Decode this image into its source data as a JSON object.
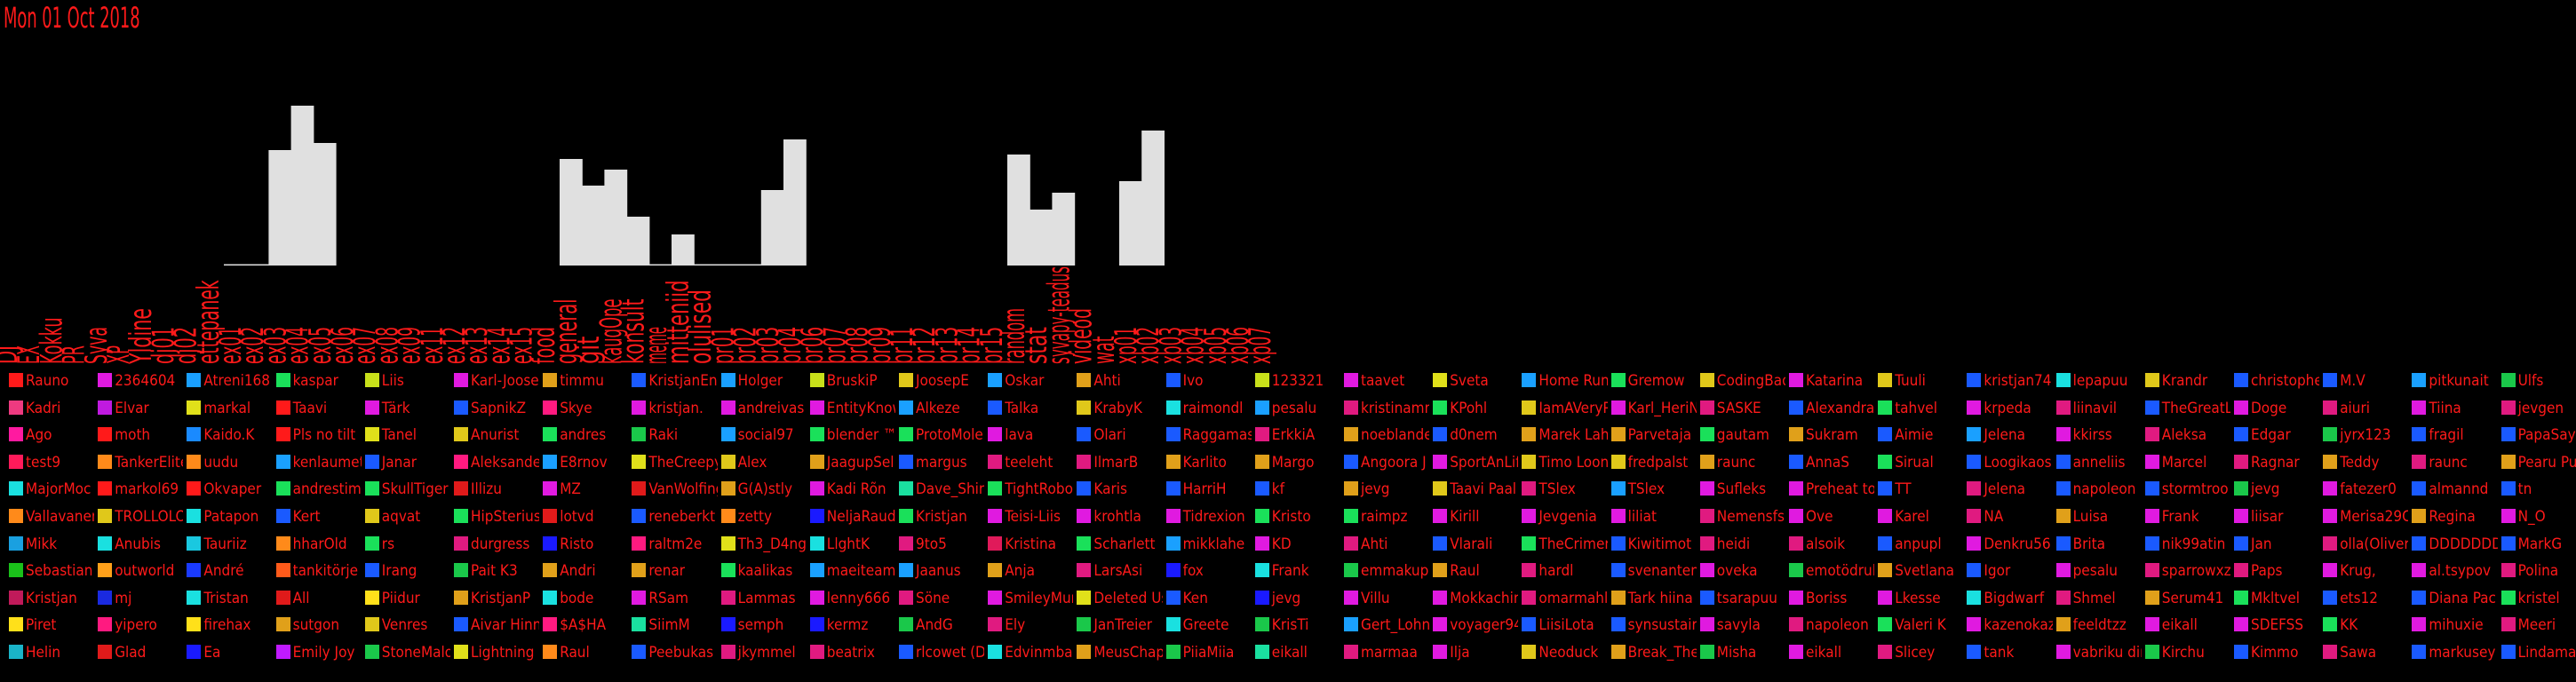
{
  "header": {
    "date": "Mon 01 Oct 2018"
  },
  "chart_data": {
    "type": "bar",
    "categories": [
      "DJ",
      "EX",
      "Kokku",
      "PR",
      "Syva",
      "XP",
      "Yldine",
      "dj01",
      "dj02",
      "ettepanek",
      "ex01",
      "ex02",
      "ex03",
      "ex04",
      "ex05",
      "ex06",
      "ex07",
      "ex08",
      "ex09",
      "ex11",
      "ex12",
      "ex13",
      "ex14",
      "ex15",
      "food",
      "general",
      "git",
      "kaugOpe",
      "konsult",
      "meme",
      "mitteniid",
      "olulised",
      "pr01",
      "pr02",
      "pr03",
      "pr04",
      "pr06",
      "pr07",
      "pr08",
      "pr09",
      "pr11",
      "pr12",
      "pr13",
      "pr14",
      "pr15",
      "random",
      "stat",
      "syvapy-teadus",
      "videod",
      "wat",
      "xp01",
      "xp02",
      "xp03",
      "xp04",
      "xp05",
      "xp06",
      "xp07"
    ],
    "values": [
      0,
      0,
      0,
      0,
      0,
      0,
      0,
      0,
      0,
      0,
      1,
      1,
      130,
      180,
      138,
      0,
      0,
      0,
      0,
      0,
      0,
      0,
      0,
      0,
      0,
      120,
      90,
      108,
      55,
      1,
      35,
      1,
      1,
      1,
      85,
      142,
      0,
      0,
      0,
      0,
      0,
      0,
      0,
      0,
      0,
      125,
      63,
      82,
      0,
      0,
      95,
      152,
      0,
      0,
      0,
      0,
      0
    ],
    "title": "",
    "xlabel": "",
    "ylabel": "",
    "ylim": [
      0,
      180
    ],
    "bar_color": "#e0e0e0",
    "label_color": "#ff1a1a",
    "grid": false
  },
  "columns": [
    [
      [
        "Rauno",
        "#ff1a1a"
      ],
      [
        "Kadri",
        "#ee3a80"
      ],
      [
        "Ago",
        "#ff1aa0"
      ],
      [
        "test9",
        "#ff1a5a"
      ],
      [
        "MajorMoc",
        "#1ae0e0"
      ],
      [
        "Vallavanem",
        "#ff8a1a"
      ],
      [
        "Mikk",
        "#1aa0e0"
      ],
      [
        "Sebastian",
        "#1ac01a"
      ],
      [
        "Kristjan",
        "#c01a5a"
      ],
      [
        "Piret",
        "#ffe01a"
      ],
      [
        "Helin",
        "#1ab4c8"
      ]
    ],
    [
      [
        "2364604",
        "#e01ae0"
      ],
      [
        "Elvar",
        "#c01ae0"
      ],
      [
        "moth",
        "#ff1a1a"
      ],
      [
        "TankerElite",
        "#ff8a1a"
      ],
      [
        "markol69",
        "#ff1a1a"
      ],
      [
        "TROLLOLOL",
        "#e0c81a"
      ],
      [
        "Anubis",
        "#1ae0e0"
      ],
      [
        "outworld",
        "#ffa01a"
      ],
      [
        "mj",
        "#1a2ae0"
      ],
      [
        "yipero",
        "#ff1a80"
      ],
      [
        "Glad",
        "#e01a1a"
      ]
    ],
    [
      [
        "Atreni168",
        "#1aa0ff"
      ],
      [
        "markal",
        "#e0e01a"
      ],
      [
        "Kaido.K",
        "#1a8aff"
      ],
      [
        "uudu",
        "#ff8a1a"
      ],
      [
        "Okvaper",
        "#ff1a1a"
      ],
      [
        "Patapon",
        "#1ae0e0"
      ],
      [
        "Tauriiz",
        "#1ac8e0"
      ],
      [
        "André",
        "#1a3aff"
      ],
      [
        "Tristan",
        "#1ae0e0"
      ],
      [
        "firehax",
        "#ffe01a"
      ],
      [
        "Ea",
        "#1a1aff"
      ]
    ],
    [
      [
        "kaspar",
        "#1ae05a"
      ],
      [
        "Taavi",
        "#ff1a1a"
      ],
      [
        "Pls no tilt",
        "#ff1a1a"
      ],
      [
        "kenlaumett",
        "#1aa0ff"
      ],
      [
        "andrestim",
        "#1ae05a"
      ],
      [
        "Kert",
        "#1a5aff"
      ],
      [
        "hharOld",
        "#ff8a1a"
      ],
      [
        "tankitörje",
        "#ff5a1a"
      ],
      [
        "All",
        "#e01a1a"
      ],
      [
        "sutgon",
        "#e0a01a"
      ],
      [
        "Emily Joy",
        "#c01aff"
      ]
    ],
    [
      [
        "Liis",
        "#c8e01a"
      ],
      [
        "Tärk",
        "#e01ae0"
      ],
      [
        "Tanel",
        "#e0e01a"
      ],
      [
        "Janar",
        "#1a5aff"
      ],
      [
        "SkullTiger",
        "#1ae05a"
      ],
      [
        "aqvat",
        "#e0c81a"
      ],
      [
        "rs",
        "#1ae05a"
      ],
      [
        "Irang",
        "#1a5aff"
      ],
      [
        "Piidur",
        "#ffe01a"
      ],
      [
        "Venres",
        "#e0c81a"
      ],
      [
        "StoneMalo",
        "#1ac84a"
      ]
    ],
    [
      [
        "Karl-Joosep",
        "#e01ae0"
      ],
      [
        "SapnikZ",
        "#1a5aff"
      ],
      [
        "Anurist",
        "#e0c81a"
      ],
      [
        "Aleksander",
        "#ff1a80"
      ],
      [
        "Illizu",
        "#e01a1a"
      ],
      [
        "HipSterius",
        "#1ae05a"
      ],
      [
        "durgress",
        "#e01a80"
      ],
      [
        "Pait K3",
        "#1ac84a"
      ],
      [
        "KristjanP",
        "#e0a01a"
      ],
      [
        "Aivar Hinn",
        "#1a5aff"
      ],
      [
        "Lightning",
        "#e0e01a"
      ]
    ],
    [
      [
        "timmu",
        "#e0a01a"
      ],
      [
        "Skye",
        "#ff1a80"
      ],
      [
        "andres",
        "#1ae05a"
      ],
      [
        "E8rnov",
        "#1aa0ff"
      ],
      [
        "MZ",
        "#e01ae0"
      ],
      [
        "lotvd",
        "#e01a1a"
      ],
      [
        "Risto",
        "#1a1aff"
      ],
      [
        "Andri",
        "#e0a01a"
      ],
      [
        "bode",
        "#1ae0e0"
      ],
      [
        "$A$HA",
        "#ff1a80"
      ],
      [
        "Raul",
        "#ff8a1a"
      ]
    ],
    [
      [
        "KristjanEn",
        "#1a5aff"
      ],
      [
        "kristjan.",
        "#e01ae0"
      ],
      [
        "Raki",
        "#1ac84a"
      ],
      [
        "TheCreepy",
        "#e0e01a"
      ],
      [
        "VanWolfing",
        "#e01a1a"
      ],
      [
        "reneberkt",
        "#1a5aff"
      ],
      [
        "raltm2e",
        "#ff1a80"
      ],
      [
        "renar",
        "#e0a01a"
      ],
      [
        "RSam",
        "#e01ae0"
      ],
      [
        "SiimM",
        "#1ae0a0"
      ],
      [
        "Peebukas",
        "#1a5aff"
      ]
    ],
    [
      [
        "Holger",
        "#1aa0ff"
      ],
      [
        "andreivas",
        "#e01ae0"
      ],
      [
        "social97",
        "#1aa0ff"
      ],
      [
        "Alex",
        "#e0c81a"
      ],
      [
        "G(A)stly",
        "#e0a01a"
      ],
      [
        "zetty",
        "#ff8a1a"
      ],
      [
        "Th3_D4ng",
        "#e0e01a"
      ],
      [
        "kaalikas",
        "#1ae05a"
      ],
      [
        "Lammas",
        "#e01a80"
      ],
      [
        "semph",
        "#1a1aff"
      ],
      [
        "jkymmel",
        "#e01a80"
      ]
    ],
    [
      [
        "BruskiP",
        "#c8e01a"
      ],
      [
        "EntityKnow",
        "#e01ae0"
      ],
      [
        "blender ™",
        "#1ae05a"
      ],
      [
        "JaagupSel",
        "#e0a01a"
      ],
      [
        "Kadi Rõn",
        "#e01ae0"
      ],
      [
        "NeljaRaud",
        "#1a1aff"
      ],
      [
        "LlghtK",
        "#1ae0e0"
      ],
      [
        "maeiteami",
        "#1aa0ff"
      ],
      [
        "lenny666",
        "#e01ae0"
      ],
      [
        "kermz",
        "#1a1aff"
      ],
      [
        "beatrix",
        "#e01a80"
      ]
    ],
    [
      [
        "JoosepE",
        "#e0c81a"
      ],
      [
        "Alkeze",
        "#1aa0ff"
      ],
      [
        "ProtoMole",
        "#1ae05a"
      ],
      [
        "margus",
        "#1a5aff"
      ],
      [
        "Dave_Shin",
        "#1ae0a0"
      ],
      [
        "Kristjan",
        "#1ae05a"
      ],
      [
        "9to5",
        "#e01a80"
      ],
      [
        "Jaanus",
        "#1aa0ff"
      ],
      [
        "Söne",
        "#e01a80"
      ],
      [
        "AndG",
        "#1ac84a"
      ],
      [
        "rlcowet (D",
        "#1a5aff"
      ]
    ],
    [
      [
        "Oskar",
        "#1aa0ff"
      ],
      [
        "Talka",
        "#1a5aff"
      ],
      [
        "lava",
        "#e01ae0"
      ],
      [
        "teeleht",
        "#e01a80"
      ],
      [
        "TightRobot",
        "#1ae05a"
      ],
      [
        "Teisi-Liis",
        "#e01ae0"
      ],
      [
        "Kristina",
        "#e01a5a"
      ],
      [
        "Anja",
        "#e0a01a"
      ],
      [
        "SmileyMur",
        "#e01ae0"
      ],
      [
        "Ely",
        "#e01a80"
      ],
      [
        "Edvinmbal",
        "#1ae0e0"
      ]
    ],
    [
      [
        "Ahti",
        "#e0a01a"
      ],
      [
        "KrabyK",
        "#e0c81a"
      ],
      [
        "Olari",
        "#1a5aff"
      ],
      [
        "IlmarB",
        "#e01a80"
      ],
      [
        "Karis",
        "#1a5aff"
      ],
      [
        "krohtla",
        "#e01ae0"
      ],
      [
        "Scharlett",
        "#1ae05a"
      ],
      [
        "LarsAsi",
        "#e01a80"
      ],
      [
        "Deleted Us",
        "#e0e01a"
      ],
      [
        "JanTreier",
        "#1ac84a"
      ],
      [
        "MeusChap",
        "#e0a01a"
      ]
    ],
    [
      [
        "Ivo",
        "#1a5aff"
      ],
      [
        "raimondl",
        "#1ae0e0"
      ],
      [
        "Raggamas",
        "#1a5aff"
      ],
      [
        "Karlito",
        "#e0a01a"
      ],
      [
        "HarriH",
        "#1a5aff"
      ],
      [
        "Tidrexion",
        "#e01ae0"
      ],
      [
        "mikklahe",
        "#1aa0ff"
      ],
      [
        "fox",
        "#1a1aff"
      ],
      [
        "Ken",
        "#1a5aff"
      ],
      [
        "Greete",
        "#1ae0e0"
      ],
      [
        "PiiaMiia",
        "#1ac84a"
      ]
    ],
    [
      [
        "123321",
        "#c8e01a"
      ],
      [
        "pesalu",
        "#1aa0ff"
      ],
      [
        "ErkkiA",
        "#e01a80"
      ],
      [
        "Margo",
        "#e0a01a"
      ],
      [
        "kf",
        "#1a5aff"
      ],
      [
        "Kristo",
        "#1ae05a"
      ],
      [
        "KD",
        "#e01ae0"
      ],
      [
        "Frank",
        "#1ae0e0"
      ],
      [
        "jevg",
        "#1a1aff"
      ],
      [
        "KrisTi",
        "#1ac84a"
      ],
      [
        "eikall",
        "#1ae0a0"
      ]
    ],
    [
      [
        "taavet",
        "#e01ae0"
      ],
      [
        "kristinamm",
        "#e01a80"
      ],
      [
        "noeblande",
        "#e0a01a"
      ],
      [
        "Angoora J",
        "#1a5aff"
      ],
      [
        "jevg",
        "#e0a01a"
      ],
      [
        "raimpz",
        "#1ae05a"
      ],
      [
        "Ahti",
        "#e01a80"
      ],
      [
        "emmakupi",
        "#1ac84a"
      ],
      [
        "Villu",
        "#e01ae0"
      ],
      [
        "Gert_Lohn",
        "#1aa0ff"
      ],
      [
        "marmaa",
        "#e01a80"
      ]
    ],
    [
      [
        "Sveta",
        "#e0e01a"
      ],
      [
        "KPohl",
        "#1ae05a"
      ],
      [
        "d0nem",
        "#1a5aff"
      ],
      [
        "SportAnLif",
        "#e01ae0"
      ],
      [
        "Taavi Paal",
        "#e0c81a"
      ],
      [
        "Kirill",
        "#e01ae0"
      ],
      [
        "Vlarali",
        "#1a5aff"
      ],
      [
        "Raul",
        "#e0a01a"
      ],
      [
        "Mokkachin",
        "#e01ae0"
      ],
      [
        "voyager94",
        "#e01ae0"
      ],
      [
        "Ilja",
        "#e01ae0"
      ]
    ],
    [
      [
        "Home Run",
        "#1aa0ff"
      ],
      [
        "IamAVeryP",
        "#e0c81a"
      ],
      [
        "Marek Lah",
        "#e0a01a"
      ],
      [
        "Timo Loon",
        "#e0c81a"
      ],
      [
        "TSlex",
        "#e01a80"
      ],
      [
        "Jevgenia",
        "#e01ae0"
      ],
      [
        "TheCrimer",
        "#1ae05a"
      ],
      [
        "hardl",
        "#e01a80"
      ],
      [
        "omarmahl",
        "#e01a80"
      ],
      [
        "LiisiLota",
        "#1a5aff"
      ],
      [
        "Neoduck",
        "#e0c81a"
      ]
    ],
    [
      [
        "Gremow",
        "#1ae05a"
      ],
      [
        "Karl_HeriN",
        "#e01ae0"
      ],
      [
        "Parvetaja",
        "#e0a01a"
      ],
      [
        "fredpalst",
        "#e0c81a"
      ],
      [
        "TSlex",
        "#1aa0ff"
      ],
      [
        "liliat",
        "#e01ae0"
      ],
      [
        "Kiwitimot",
        "#1a5aff"
      ],
      [
        "svenanten",
        "#1a5aff"
      ],
      [
        "Tark hiina",
        "#e0a01a"
      ],
      [
        "synsustair",
        "#1a5aff"
      ],
      [
        "Break_The",
        "#e0a01a"
      ]
    ],
    [
      [
        "CodingBad",
        "#e0c81a"
      ],
      [
        "SASKE",
        "#e01a80"
      ],
      [
        "gautam",
        "#1ae05a"
      ],
      [
        "raunc",
        "#e0a01a"
      ],
      [
        "Sufleks",
        "#e01ae0"
      ],
      [
        "Nemensfs",
        "#e01a80"
      ],
      [
        "heidi",
        "#e01a80"
      ],
      [
        "oveka",
        "#e01ae0"
      ],
      [
        "tsarapuu",
        "#1a5aff"
      ],
      [
        "savyla",
        "#e01ae0"
      ],
      [
        "Misha",
        "#1ac84a"
      ]
    ],
    [
      [
        "Katarina",
        "#e01ae0"
      ],
      [
        "Alexandra",
        "#1a5aff"
      ],
      [
        "Sukram",
        "#e0a01a"
      ],
      [
        "AnnaS",
        "#1a5aff"
      ],
      [
        "Preheat to",
        "#e01ae0"
      ],
      [
        "Ove",
        "#e01ae0"
      ],
      [
        "alsoik",
        "#e01a80"
      ],
      [
        "emotödrul",
        "#1ac84a"
      ],
      [
        "Boriss",
        "#e01ae0"
      ],
      [
        "napoleon",
        "#e01a80"
      ],
      [
        "eikall",
        "#e01ae0"
      ]
    ],
    [
      [
        "Tuuli",
        "#e0c81a"
      ],
      [
        "tahvel",
        "#1ae05a"
      ],
      [
        "Aimie",
        "#1a5aff"
      ],
      [
        "Sirual",
        "#1ae05a"
      ],
      [
        "TT",
        "#1a5aff"
      ],
      [
        "Karel",
        "#e01ae0"
      ],
      [
        "anpupl",
        "#1a5aff"
      ],
      [
        "Svetlana",
        "#e0a01a"
      ],
      [
        "Lkesse",
        "#e01ae0"
      ],
      [
        "Valeri K",
        "#1ae05a"
      ],
      [
        "Slicey",
        "#e01a80"
      ]
    ],
    [
      [
        "kristjan74",
        "#1a5aff"
      ],
      [
        "krpeda",
        "#e01ae0"
      ],
      [
        "Jelena",
        "#1aa0ff"
      ],
      [
        "Loogikaos",
        "#1a5aff"
      ],
      [
        "Jelena",
        "#e01a80"
      ],
      [
        "NA",
        "#e01a80"
      ],
      [
        "Denkru56",
        "#e01ae0"
      ],
      [
        "Igor",
        "#1a5aff"
      ],
      [
        "Bigdwarf",
        "#1ae0e0"
      ],
      [
        "kazenokaz",
        "#e01ae0"
      ],
      [
        "tank",
        "#1a5aff"
      ]
    ],
    [
      [
        "lepapuu",
        "#1ae0e0"
      ],
      [
        "liinavil",
        "#e01a80"
      ],
      [
        "kkirss",
        "#e01ae0"
      ],
      [
        "anneliis",
        "#1a5aff"
      ],
      [
        "napoleon",
        "#1a5aff"
      ],
      [
        "Luisa",
        "#e0a01a"
      ],
      [
        "Brita",
        "#1a5aff"
      ],
      [
        "pesalu",
        "#e01ae0"
      ],
      [
        "Shmel",
        "#e01a80"
      ],
      [
        "feeldtzz",
        "#e0a01a"
      ],
      [
        "vabriku dir",
        "#e01ae0"
      ]
    ],
    [
      [
        "Krandr",
        "#e0c81a"
      ],
      [
        "TheGreatL",
        "#1a5aff"
      ],
      [
        "Aleksa",
        "#e01a80"
      ],
      [
        "Marcel",
        "#e01ae0"
      ],
      [
        "stormtroo",
        "#1a5aff"
      ],
      [
        "Frank",
        "#e01ae0"
      ],
      [
        "nik99atin",
        "#1a5aff"
      ],
      [
        "sparrowxz",
        "#e01a80"
      ],
      [
        "Serum41",
        "#e0a01a"
      ],
      [
        "eikall",
        "#e01ae0"
      ],
      [
        "Kirchu",
        "#1ac84a"
      ]
    ],
    [
      [
        "christophe",
        "#1a5aff"
      ],
      [
        "Doge",
        "#e01ae0"
      ],
      [
        "Edgar",
        "#1a5aff"
      ],
      [
        "Ragnar",
        "#e01a80"
      ],
      [
        "jevg",
        "#1ac84a"
      ],
      [
        "liisar",
        "#e01ae0"
      ],
      [
        "Jan",
        "#1a5aff"
      ],
      [
        "Paps",
        "#e01a80"
      ],
      [
        "Mkltvel",
        "#1ae05a"
      ],
      [
        "SDEFSS",
        "#e01ae0"
      ],
      [
        "Kimmo",
        "#1a5aff"
      ]
    ],
    [
      [
        "M.V",
        "#1a5aff"
      ],
      [
        "aiuri",
        "#e01a80"
      ],
      [
        "jyrx123",
        "#1ac84a"
      ],
      [
        "Teddy",
        "#e0a01a"
      ],
      [
        "fatezer0",
        "#e01ae0"
      ],
      [
        "Merisa29C",
        "#e01ae0"
      ],
      [
        "olla(Oliver",
        "#e01a80"
      ],
      [
        "Krug,",
        "#e01ae0"
      ],
      [
        "ets12",
        "#1a5aff"
      ],
      [
        "KK",
        "#1ae05a"
      ],
      [
        "Sawa",
        "#e01a80"
      ]
    ],
    [
      [
        "pitkunait",
        "#1aa0ff"
      ],
      [
        "Tiina",
        "#e01ae0"
      ],
      [
        "fragil",
        "#1a5aff"
      ],
      [
        "raunc",
        "#e01a80"
      ],
      [
        "almannd",
        "#1a5aff"
      ],
      [
        "Regina",
        "#e0a01a"
      ],
      [
        "DDDDDDDD",
        "#1a5aff"
      ],
      [
        "al.tsypov",
        "#e01ae0"
      ],
      [
        "Diana Pac",
        "#1a5aff"
      ],
      [
        "mihuxie",
        "#e01ae0"
      ],
      [
        "markusey",
        "#1a5aff"
      ]
    ],
    [
      [
        "Ulfs",
        "#1ac84a"
      ],
      [
        "jevgen",
        "#e01a80"
      ],
      [
        "PapaSay",
        "#1a5aff"
      ],
      [
        "Pearu Pu",
        "#e0a01a"
      ],
      [
        "tn",
        "#1a5aff"
      ],
      [
        "N_O",
        "#e01ae0"
      ],
      [
        "MarkG",
        "#1a5aff"
      ],
      [
        "Polina",
        "#e01a80"
      ],
      [
        "kristel",
        "#1ae05a"
      ],
      [
        "Meeri",
        "#e01a80"
      ],
      [
        "Lindama",
        "#1a5aff"
      ]
    ]
  ]
}
